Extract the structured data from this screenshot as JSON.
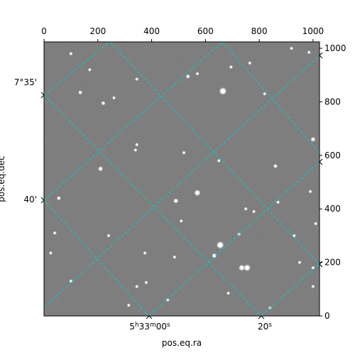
{
  "chart_data": {
    "type": "image",
    "xlabel": "pos.eq.ra",
    "ylabel": "pos.eq.dec",
    "pixel_axes": {
      "x": {
        "range": [
          0,
          1024
        ],
        "ticks": [
          0,
          200,
          400,
          600,
          800,
          1000
        ]
      },
      "y": {
        "range": [
          0,
          1024
        ],
        "ticks": [
          0,
          200,
          400,
          600,
          800,
          1000
        ]
      }
    },
    "world_ticks": {
      "ra": [
        {
          "label_main": "5",
          "sup1": "h",
          "mid": "33",
          "sup2": "m",
          "sec": "00",
          "sup3": "s"
        },
        {
          "label_main": "20",
          "sup3": "s"
        }
      ],
      "dec": [
        "7°35'",
        "40'"
      ]
    },
    "grid": {
      "on": true,
      "color": "#00d0d0",
      "style": "dashed"
    },
    "image": {
      "background": "#7e7e7e",
      "colormap": "gray"
    },
    "stars": [
      [
        665,
        840,
        9
      ],
      [
        570,
        460,
        7
      ],
      [
        655,
        265,
        9
      ],
      [
        755,
        180,
        8
      ],
      [
        210,
        550,
        5
      ],
      [
        735,
        180,
        7
      ],
      [
        490,
        430,
        5
      ],
      [
        633,
        225,
        5
      ],
      [
        220,
        795,
        4
      ],
      [
        135,
        835,
        4
      ],
      [
        535,
        895,
        4
      ],
      [
        570,
        905,
        3
      ],
      [
        345,
        885,
        3
      ],
      [
        1000,
        660,
        5
      ],
      [
        860,
        560,
        4
      ],
      [
        55,
        440,
        4
      ],
      [
        510,
        355,
        3
      ],
      [
        380,
        125,
        3
      ],
      [
        375,
        235,
        3
      ],
      [
        485,
        220,
        3
      ],
      [
        100,
        130,
        3
      ],
      [
        25,
        235,
        3
      ],
      [
        340,
        620,
        3
      ],
      [
        345,
        640,
        3
      ],
      [
        750,
        400,
        3
      ],
      [
        870,
        425,
        3
      ],
      [
        990,
        465,
        3
      ],
      [
        1010,
        345,
        3
      ],
      [
        695,
        930,
        3
      ],
      [
        170,
        920,
        3
      ],
      [
        100,
        980,
        3
      ],
      [
        260,
        815,
        3
      ],
      [
        920,
        1000,
        3
      ],
      [
        985,
        985,
        3
      ],
      [
        765,
        945,
        3
      ],
      [
        820,
        830,
        3
      ],
      [
        240,
        300,
        3
      ],
      [
        345,
        110,
        3
      ],
      [
        40,
        310,
        3
      ],
      [
        685,
        85,
        3
      ],
      [
        780,
        390,
        3
      ],
      [
        725,
        305,
        3
      ],
      [
        520,
        610,
        3
      ],
      [
        650,
        580,
        3
      ],
      [
        950,
        200,
        3
      ],
      [
        1000,
        180,
        3
      ],
      [
        840,
        30,
        3
      ],
      [
        315,
        40,
        3
      ],
      [
        460,
        60,
        3
      ],
      [
        930,
        300,
        3
      ],
      [
        1000,
        110,
        3
      ]
    ]
  }
}
